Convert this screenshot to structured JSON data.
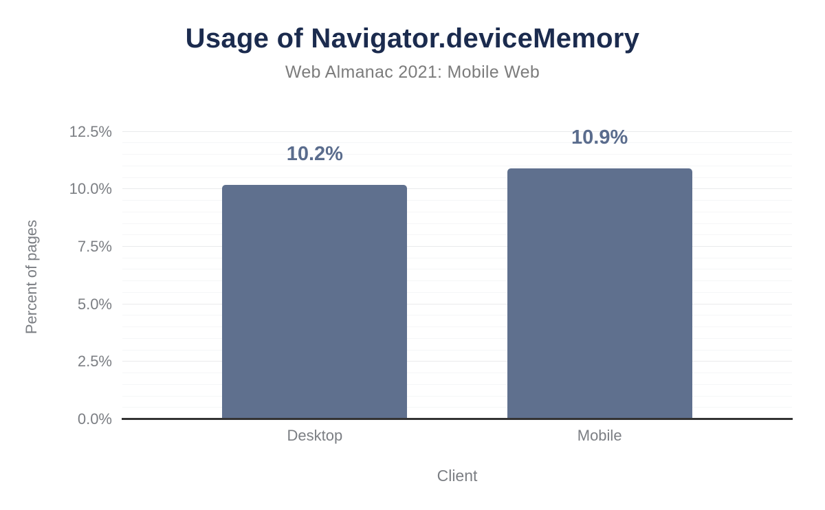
{
  "chart_data": {
    "type": "bar",
    "title": "Usage of Navigator.deviceMemory",
    "subtitle": "Web Almanac 2021: Mobile Web",
    "xlabel": "Client",
    "ylabel": "Percent of pages",
    "categories": [
      "Desktop",
      "Mobile"
    ],
    "values": [
      10.2,
      10.9
    ],
    "value_labels": [
      "10.2%",
      "10.9%"
    ],
    "ylim": [
      0,
      12.7
    ],
    "yticks": [
      0,
      2.5,
      5,
      7.5,
      10,
      12.5
    ],
    "ytick_labels": [
      "0.0%",
      "2.5%",
      "5.0%",
      "7.5%",
      "10.0%",
      "12.5%"
    ],
    "minor_tick_step": 0.5,
    "major_tick_step": 2.5,
    "grid": "on",
    "legend": "none",
    "colors": {
      "bar": "#5f708e",
      "value_label": "#5a6c8d",
      "title": "#1b2b4e",
      "subtitle": "#7c7c7c",
      "tick_text": "#7b7e83",
      "axis_line": "#333333",
      "grid_major": "#e9eaec",
      "grid_minor": "#f5f6f7",
      "background": "#ffffff"
    }
  }
}
